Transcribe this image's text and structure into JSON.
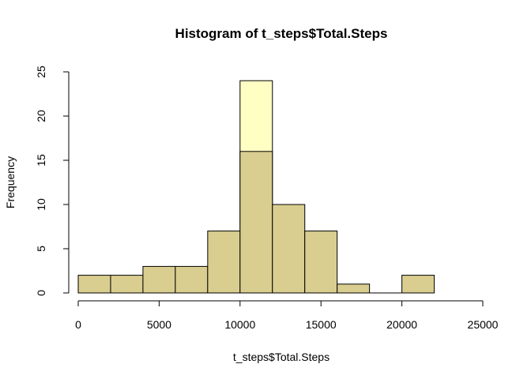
{
  "chart_data": {
    "type": "bar",
    "title": "Histogram of t_steps$Total.Steps",
    "xlabel": "t_steps$Total.Steps",
    "ylabel": "Frequency",
    "xlim": [
      0,
      25000
    ],
    "ylim": [
      0,
      25
    ],
    "x_ticks": [
      0,
      5000,
      10000,
      15000,
      20000,
      25000
    ],
    "y_ticks": [
      0,
      5,
      10,
      15,
      20,
      25
    ],
    "grid": false,
    "legend": "none",
    "bin_edges": [
      0,
      2000,
      4000,
      6000,
      8000,
      10000,
      12000,
      14000,
      16000,
      18000,
      20000,
      22000
    ],
    "series": [
      {
        "values": [
          0,
          0,
          0,
          0,
          0,
          24,
          0,
          0,
          0,
          0,
          0
        ],
        "color": "#FFFFC4"
      },
      {
        "values": [
          2,
          2,
          3,
          3,
          7,
          16,
          10,
          7,
          1,
          0,
          2
        ],
        "color": "#D9CE90"
      }
    ]
  }
}
